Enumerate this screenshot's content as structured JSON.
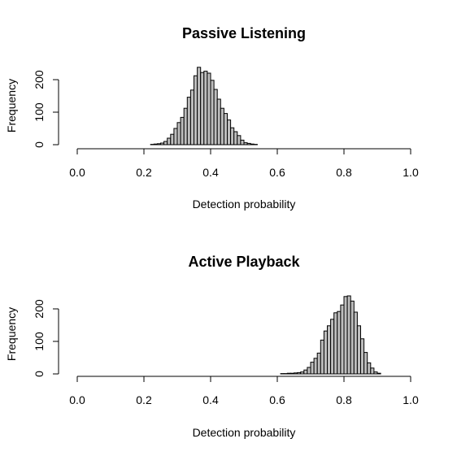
{
  "colors": {
    "bar_fill": "#bebebe",
    "bar_stroke": "#000000",
    "axis": "#000000",
    "background": "#ffffff"
  },
  "chart_data": [
    {
      "type": "bar",
      "title": "Passive Listening",
      "xlabel": "Detection probability",
      "ylabel": "Frequency",
      "xlim": [
        0.0,
        1.0
      ],
      "ylim": [
        0,
        240
      ],
      "x_ticks": [
        "0.0",
        "0.2",
        "0.4",
        "0.6",
        "0.8",
        "1.0"
      ],
      "y_ticks": [
        "0",
        "100",
        "200"
      ],
      "bin_width": 0.01,
      "bin_start": 0.22,
      "values": [
        1,
        2,
        3,
        5,
        10,
        20,
        32,
        50,
        68,
        84,
        112,
        146,
        168,
        212,
        238,
        222,
        226,
        220,
        198,
        170,
        140,
        112,
        96,
        76,
        52,
        40,
        28,
        14,
        6,
        4,
        2,
        1
      ]
    },
    {
      "type": "bar",
      "title": "Active Playback",
      "xlabel": "Detection probability",
      "ylabel": "Frequency",
      "xlim": [
        0.0,
        1.0
      ],
      "ylim": [
        0,
        240
      ],
      "x_ticks": [
        "0.0",
        "0.2",
        "0.4",
        "0.6",
        "0.8",
        "1.0"
      ],
      "y_ticks": [
        "0",
        "100",
        "200"
      ],
      "bin_width": 0.01,
      "bin_start": 0.61,
      "values": [
        1,
        1,
        2,
        2,
        3,
        4,
        6,
        12,
        20,
        36,
        48,
        64,
        104,
        132,
        148,
        168,
        188,
        192,
        212,
        238,
        240,
        224,
        190,
        148,
        108,
        66,
        34,
        18,
        6,
        2
      ]
    }
  ]
}
